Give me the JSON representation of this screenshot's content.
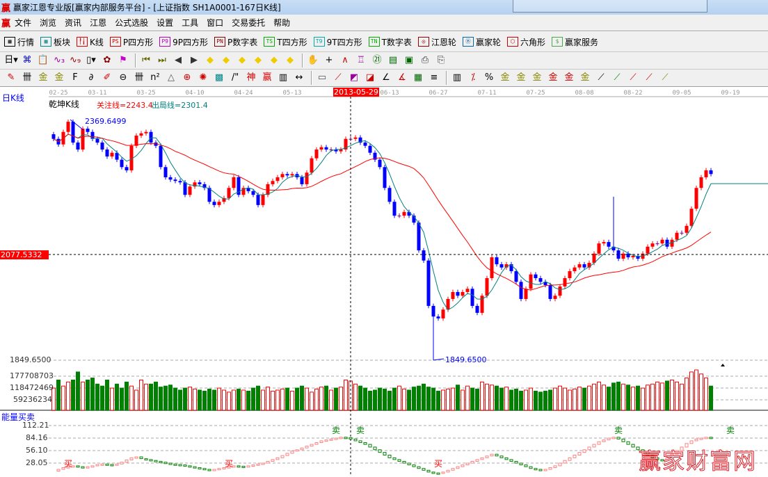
{
  "window": {
    "logo": "赢",
    "title": "赢家江恩专业版[赢家内部服务平台] - [上证指数  SH1A0001-167日K线]"
  },
  "menu": {
    "logo": "赢",
    "items": [
      "文件",
      "浏览",
      "资讯",
      "江恩",
      "公式选股",
      "设置",
      "工具",
      "窗口",
      "交易委托",
      "帮助"
    ]
  },
  "toolbar1": [
    {
      "icon": "quote-grid-icon",
      "glyph": "▦",
      "label": "行情",
      "color": "#000"
    },
    {
      "icon": "sector-blocks-icon",
      "glyph": "▩",
      "label": "板块",
      "color": "#088"
    },
    {
      "icon": "kline-icon",
      "glyph": "╿╽",
      "label": "K线",
      "color": "#d00"
    },
    {
      "icon": "ps-icon",
      "glyph": "PS",
      "label": "P四方形",
      "color": "#c00"
    },
    {
      "icon": "p9-icon",
      "glyph": "P9",
      "label": "9P四方形",
      "color": "#b0b"
    },
    {
      "icon": "pn-icon",
      "glyph": "PN",
      "label": "P数字表",
      "color": "#800"
    },
    {
      "icon": "ts-icon",
      "glyph": "TS",
      "label": "T四方形",
      "color": "#0a0"
    },
    {
      "icon": "t9-icon",
      "glyph": "T9",
      "label": "9T四方形",
      "color": "#0aa"
    },
    {
      "icon": "tn-icon",
      "glyph": "TN",
      "label": "T数字表",
      "color": "#0a0"
    },
    {
      "icon": "gann-wheel-icon",
      "glyph": "◎",
      "label": "江恩轮",
      "color": "#900"
    },
    {
      "icon": "winner-wheel-icon",
      "glyph": "Ⓑ",
      "label": "赢家轮",
      "color": "#06a"
    },
    {
      "icon": "hexagon-icon",
      "glyph": "⬡",
      "label": "六角形",
      "color": "#c00"
    },
    {
      "icon": "dollar-icon",
      "glyph": "$",
      "label": "赢家服务",
      "color": "#4a4"
    }
  ],
  "toolbar2": [
    {
      "icon": "period-day-dropdown",
      "glyph": "日▾",
      "color": "#000"
    },
    {
      "icon": "pattern-icon",
      "glyph": "⌘",
      "color": "#00c"
    },
    {
      "icon": "clipboard-icon",
      "glyph": "📋",
      "color": "#00c"
    },
    {
      "icon": "wave3-icon",
      "glyph": "∿₃",
      "color": "#909"
    },
    {
      "icon": "wave9-icon",
      "glyph": "∿₉",
      "color": "#900"
    },
    {
      "icon": "candle-dropdown",
      "glyph": "▯▾",
      "color": "#000"
    },
    {
      "icon": "map-icon",
      "glyph": "✿",
      "color": "#800"
    },
    {
      "icon": "flag-icon",
      "glyph": "⚑",
      "color": "#c0c"
    },
    {
      "sep": true
    },
    {
      "icon": "first-icon",
      "glyph": "⏮",
      "color": "#660"
    },
    {
      "icon": "last-icon",
      "glyph": "⏭",
      "color": "#660"
    },
    {
      "icon": "prev-icon",
      "glyph": "◀",
      "color": "#333"
    },
    {
      "icon": "next-icon",
      "glyph": "▶",
      "color": "#333"
    },
    {
      "icon": "left-sign-icon",
      "glyph": "◆",
      "color": "#ec0"
    },
    {
      "icon": "right-sign-icon",
      "glyph": "◆",
      "color": "#ec0"
    },
    {
      "icon": "hexpand-sign-icon",
      "glyph": "◆",
      "color": "#ec0"
    },
    {
      "icon": "shrink-sign-icon",
      "glyph": "◆",
      "color": "#ec0"
    },
    {
      "icon": "expand-sign-icon",
      "glyph": "◆",
      "color": "#ec0"
    },
    {
      "icon": "all-sign-icon",
      "glyph": "◆",
      "color": "#ec0"
    },
    {
      "sep": true
    },
    {
      "icon": "hand-icon",
      "glyph": "✋",
      "color": "#000"
    },
    {
      "icon": "crosshair-icon",
      "glyph": "+",
      "color": "#000"
    },
    {
      "icon": "line-draw-icon",
      "glyph": "∧",
      "color": "#c00"
    },
    {
      "icon": "stamp-icon",
      "glyph": "♖",
      "color": "#909"
    },
    {
      "icon": "calendar-icon",
      "glyph": "㉑",
      "color": "#060"
    },
    {
      "icon": "calculator-icon",
      "glyph": "▤",
      "color": "#060"
    },
    {
      "icon": "book-icon",
      "glyph": "▣",
      "color": "#060"
    },
    {
      "icon": "export-icon",
      "glyph": "⎙",
      "color": "#333"
    },
    {
      "icon": "print-icon",
      "glyph": "⎘",
      "color": "#333"
    }
  ],
  "toolbar3": [
    {
      "icon": "pen-icon",
      "glyph": "✎",
      "color": "#c00"
    },
    {
      "icon": "lines-icon",
      "glyph": "卌",
      "color": "#000"
    },
    {
      "icon": "gold-lines-icon",
      "glyph": "金",
      "color": "#880"
    },
    {
      "icon": "gold-lines2-icon",
      "glyph": "金",
      "color": "#880"
    },
    {
      "icon": "fib-lines-icon",
      "glyph": "F",
      "color": "#000"
    },
    {
      "icon": "spiral-icon",
      "glyph": "∂",
      "color": "#000"
    },
    {
      "icon": "pen-scale-icon",
      "glyph": "✐",
      "color": "#c00"
    },
    {
      "icon": "circle-scale-icon",
      "glyph": "⊖",
      "color": "#000"
    },
    {
      "icon": "period-lines-icon",
      "glyph": "卌",
      "color": "#000"
    },
    {
      "icon": "square-lines-icon",
      "glyph": "n²",
      "color": "#000"
    },
    {
      "icon": "triangle-icon",
      "glyph": "△",
      "color": "#555"
    },
    {
      "icon": "circle-cross-icon",
      "glyph": "⊕",
      "color": "#c00"
    },
    {
      "icon": "web-icon",
      "glyph": "✺",
      "color": "#c00"
    },
    {
      "icon": "square-web-icon",
      "glyph": "▩",
      "color": "#088"
    },
    {
      "icon": "slant-lines-icon",
      "glyph": "/\"",
      "color": "#000"
    },
    {
      "icon": "shen-lines-icon",
      "glyph": "神",
      "color": "#d00"
    },
    {
      "icon": "ying-lines-icon",
      "glyph": "赢",
      "color": "#d00"
    },
    {
      "icon": "ruler-icon",
      "glyph": "▥",
      "color": "#000"
    },
    {
      "icon": "measure-icon",
      "glyph": "↔",
      "color": "#000"
    },
    {
      "sep": true
    },
    {
      "icon": "box-icon",
      "glyph": "▭",
      "color": "#555"
    },
    {
      "icon": "fan-icon",
      "glyph": "⟋",
      "color": "#c00"
    },
    {
      "icon": "gann-box-icon",
      "glyph": "◩",
      "color": "#909"
    },
    {
      "icon": "gann-fan-icon",
      "glyph": "◪",
      "color": "#c00"
    },
    {
      "icon": "angle-icon",
      "glyph": "∠",
      "color": "#000"
    },
    {
      "icon": "speed-lines-icon",
      "glyph": "∡",
      "color": "#c00"
    },
    {
      "icon": "grid-icon",
      "glyph": "▦",
      "color": "#060"
    },
    {
      "icon": "list-icon",
      "glyph": "≡",
      "color": "#000"
    },
    {
      "sep": true
    },
    {
      "icon": "table-icon",
      "glyph": "▥",
      "color": "#000"
    },
    {
      "icon": "percent-line-icon",
      "glyph": "⁒",
      "color": "#c00"
    },
    {
      "icon": "percent-icon",
      "glyph": "%",
      "color": "#000"
    },
    {
      "icon": "gold-1-icon",
      "glyph": "金",
      "color": "#880"
    },
    {
      "icon": "gold-2-icon",
      "glyph": "金",
      "color": "#880"
    },
    {
      "icon": "gold-3-icon",
      "glyph": "金",
      "color": "#880"
    },
    {
      "icon": "gold-4-icon",
      "glyph": "金",
      "color": "#c00"
    },
    {
      "icon": "gold-5-icon",
      "glyph": "金",
      "color": "#c00"
    },
    {
      "icon": "gold-6-icon",
      "glyph": "金",
      "color": "#880"
    },
    {
      "icon": "fan-2-icon",
      "glyph": "⟋",
      "color": "#000"
    },
    {
      "icon": "fan-3-icon",
      "glyph": "⟋",
      "color": "#080"
    },
    {
      "icon": "fan-4-icon",
      "glyph": "⟋",
      "color": "#c00"
    },
    {
      "icon": "fan-5-icon",
      "glyph": "⟋",
      "color": "#c00"
    },
    {
      "icon": "fan-6-icon",
      "glyph": "⟋",
      "color": "#880"
    }
  ],
  "chart": {
    "period_label": "日K线",
    "indicator_name": "乾坤K线",
    "focus_line": "关注线=2243.4",
    "exit_line": "出局线=2301.4",
    "cursor_price": "2077.5332",
    "cursor_date": "2013-05-29",
    "high_label": "2369.6499",
    "low_label": "1849.6500",
    "price_axis_bottom": "1849.6500",
    "volume_ticks": [
      "177708703",
      "118472469",
      "59236234"
    ],
    "energy_title": "能量买卖",
    "energy_ticks": [
      "112.21",
      "84.16",
      "56.10",
      "28.05"
    ],
    "watermark": "赢家财富网",
    "colors": {
      "up": "#ff0000",
      "down": "#0000ff",
      "neutral": "#800080",
      "ma_short": "#008080",
      "ma_long": "#ff0000",
      "vol_up": "#ff0000",
      "vol_down": "#008000",
      "energy_up": "#ff8080",
      "energy_down": "#008000",
      "cursor_bg": "#ff0000"
    }
  },
  "chart_data": {
    "type": "candlestick",
    "x_ticks": [
      {
        "label": "02-25",
        "index": 1
      },
      {
        "label": "03-11",
        "index": 9
      },
      {
        "label": "03-25",
        "index": 19
      },
      {
        "label": "04-10",
        "index": 29
      },
      {
        "label": "04-24",
        "index": 39
      },
      {
        "label": "05-13",
        "index": 49
      },
      {
        "label": "06-13",
        "index": 69
      },
      {
        "label": "06-27",
        "index": 79
      },
      {
        "label": "07-11",
        "index": 89
      },
      {
        "label": "07-25",
        "index": 99
      },
      {
        "label": "08-08",
        "index": 109
      },
      {
        "label": "08-22",
        "index": 119
      },
      {
        "label": "09-05",
        "index": 129
      },
      {
        "label": "09-19",
        "index": 139
      }
    ],
    "cursor_index": 61,
    "price_range": [
      1849.65,
      2369.65
    ],
    "close": [
      2328,
      2316,
      2343,
      2365,
      2320,
      2305,
      2350,
      2343,
      2328,
      2320,
      2305,
      2290,
      2298,
      2283,
      2267,
      2260,
      2313,
      2335,
      2340,
      2343,
      2320,
      2313,
      2267,
      2245,
      2240,
      2237,
      2234,
      2207,
      2225,
      2234,
      2230,
      2222,
      2192,
      2185,
      2192,
      2200,
      2222,
      2245,
      2207,
      2222,
      2215,
      2207,
      2185,
      2207,
      2230,
      2237,
      2245,
      2252,
      2249,
      2252,
      2245,
      2230,
      2255,
      2286,
      2305,
      2310,
      2305,
      2305,
      2301,
      2305,
      2328,
      2328,
      2331,
      2320,
      2313,
      2298,
      2283,
      2267,
      2222,
      2192,
      2162,
      2162,
      2170,
      2162,
      2147,
      2087,
      2065,
      1967,
      1944,
      1940,
      1959,
      1982,
      1997,
      1989,
      1997,
      2004,
      1967,
      1952,
      1989,
      2027,
      2072,
      2057,
      2050,
      2057,
      2042,
      2019,
      1982,
      2004,
      2035,
      2027,
      2019,
      2012,
      1982,
      1989,
      2009,
      2027,
      2042,
      2050,
      2057,
      2050,
      2060,
      2080,
      2102,
      2105,
      2095,
      2087,
      2069,
      2080,
      2072,
      2075,
      2069,
      2080,
      2095,
      2102,
      2102,
      2110,
      2095,
      2110,
      2125,
      2125,
      2140,
      2177,
      2222,
      2245,
      2260,
      2252
    ],
    "wick_extremes": [
      {
        "index": 3,
        "high": 2369.65
      },
      {
        "index": 78,
        "low": 1849.65
      },
      {
        "index": 115,
        "high": 2203
      }
    ],
    "volume_millions": [
      110,
      150,
      120,
      140,
      150,
      190,
      140,
      150,
      160,
      130,
      120,
      150,
      110,
      130,
      110,
      140,
      120,
      100,
      150,
      130,
      130,
      140,
      115,
      120,
      125,
      110,
      100,
      110,
      115,
      105,
      100,
      95,
      105,
      100,
      110,
      100,
      90,
      100,
      105,
      100,
      95,
      110,
      120,
      100,
      115,
      95,
      100,
      105,
      110,
      95,
      110,
      120,
      110,
      90,
      105,
      115,
      120,
      100,
      110,
      115,
      150,
      145,
      130,
      120,
      110,
      95,
      100,
      110,
      105,
      95,
      110,
      120,
      105,
      100,
      115,
      120,
      130,
      115,
      110,
      95,
      100,
      105,
      110,
      125,
      100,
      120,
      110,
      105,
      140,
      130,
      125,
      120,
      110,
      115,
      100,
      105,
      95,
      100,
      110,
      95,
      90,
      95,
      100,
      110,
      120,
      110,
      100,
      105,
      115,
      110,
      120,
      130,
      140,
      125,
      115,
      135,
      140,
      130,
      125,
      115,
      120,
      110,
      125,
      130,
      140,
      135,
      145,
      150,
      140,
      130,
      160,
      190,
      200,
      180,
      160,
      120
    ],
    "volume_range": [
      0,
      200000000
    ],
    "energy": [
      10,
      14,
      18,
      20,
      22,
      20,
      18,
      20,
      22,
      25,
      26,
      25,
      24,
      26,
      30,
      35,
      40,
      42,
      38,
      36,
      34,
      32,
      30,
      28,
      26,
      25,
      24,
      22,
      20,
      18,
      16,
      14,
      12,
      14,
      16,
      18,
      20,
      22,
      21,
      20,
      22,
      24,
      26,
      28,
      32,
      36,
      40,
      45,
      50,
      55,
      58,
      62,
      66,
      70,
      74,
      78,
      80,
      82,
      84,
      86,
      85,
      82,
      78,
      74,
      70,
      64,
      58,
      52,
      46,
      40,
      36,
      32,
      28,
      24,
      20,
      16,
      12,
      8,
      6,
      5,
      8,
      12,
      16,
      20,
      24,
      28,
      32,
      36,
      40,
      44,
      48,
      44,
      40,
      36,
      32,
      28,
      24,
      20,
      16,
      14,
      12,
      14,
      18,
      22,
      28,
      34,
      40,
      46,
      52,
      58,
      64,
      70,
      76,
      80,
      84,
      86,
      82,
      76,
      70,
      64,
      58,
      52,
      46,
      40,
      36,
      34,
      40,
      48,
      56,
      64,
      72,
      78,
      82,
      84,
      86,
      85
    ],
    "energy_range": [
      0,
      112.21
    ],
    "signals": [
      {
        "index": 3,
        "label": "买"
      },
      {
        "index": 36,
        "label": "买"
      },
      {
        "index": 58,
        "label": "卖"
      },
      {
        "index": 63,
        "label": "卖"
      },
      {
        "index": 79,
        "label": "买"
      },
      {
        "index": 116,
        "label": "卖"
      },
      {
        "index": 139,
        "label": "卖"
      }
    ]
  }
}
